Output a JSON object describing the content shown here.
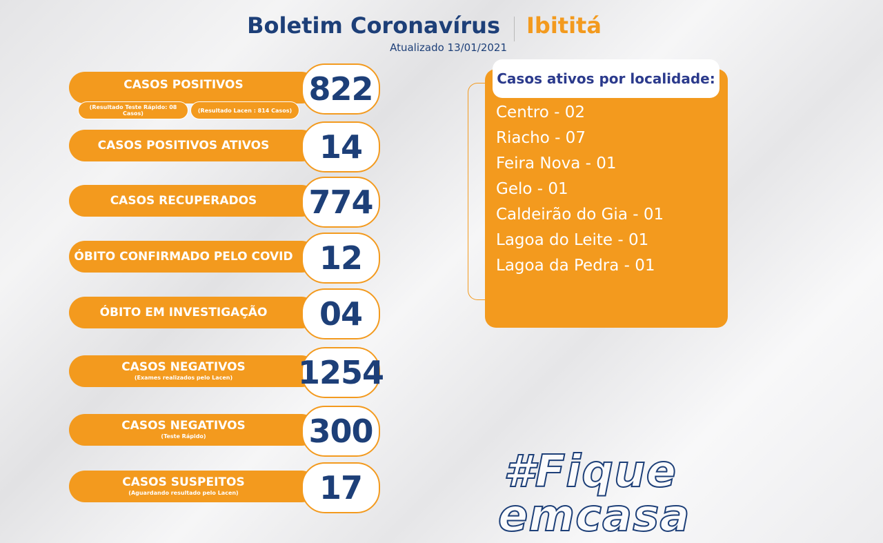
{
  "header": {
    "title": "Boletim Coronavírus",
    "city": "Ibititá",
    "updated": "Atualizado 13/01/2021"
  },
  "stats": [
    {
      "label": "CASOS  POSITIVOS",
      "value": "822",
      "notes": [
        "(Resultado Teste Rápido: 08 Casos)",
        "(Resultado Lacen : 814 Casos)"
      ]
    },
    {
      "label": "CASOS POSITIVOS ATIVOS",
      "value": "14"
    },
    {
      "label": "CASOS RECUPERADOS",
      "value": "774"
    },
    {
      "label": "ÓBITO CONFIRMADO PELO COVID",
      "value": "12"
    },
    {
      "label": "ÓBITO EM INVESTIGAÇÃO",
      "value": "04"
    },
    {
      "label": "CASOS NEGATIVOS",
      "sublabel": "(Exames realizados pelo Lacen)",
      "value": "1254"
    },
    {
      "label": "CASOS NEGATIVOS",
      "sublabel": "(Teste Rápido)",
      "value": "300"
    },
    {
      "label": "CASOS SUSPEITOS",
      "sublabel": "(Aguardando resultado pelo Lacen)",
      "value": "17"
    }
  ],
  "localities": {
    "title": "Casos ativos por localidade:",
    "items": [
      "Centro - 02",
      "Riacho - 07",
      "Feira Nova - 01",
      "Gelo - 01",
      "Caldeirão do Gia - 01",
      "Lagoa do Leite - 01",
      "Lagoa da Pedra - 01"
    ]
  },
  "hashtag": [
    "#Fique",
    "emcasa"
  ]
}
